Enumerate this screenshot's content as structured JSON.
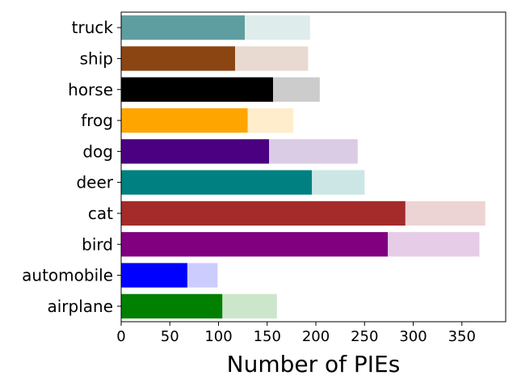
{
  "chart_data": {
    "type": "bar",
    "orientation": "horizontal",
    "stacked": true,
    "xlabel": "Number of PIEs",
    "ylabel": "",
    "title": "",
    "xlim": [
      0,
      395
    ],
    "xticks": [
      0,
      50,
      100,
      150,
      200,
      250,
      300,
      350
    ],
    "grid": false,
    "categories": [
      "airplane",
      "automobile",
      "bird",
      "cat",
      "deer",
      "dog",
      "frog",
      "horse",
      "ship",
      "truck"
    ],
    "series": [
      {
        "values": [
          104,
          68,
          274,
          292,
          196,
          152,
          130,
          156,
          117,
          127
        ],
        "colors": [
          "#008000",
          "#0000ff",
          "#800080",
          "#a52a2a",
          "#008080",
          "#4b0082",
          "#ffa500",
          "#000000",
          "#8b4513",
          "#5f9ea0"
        ]
      },
      {
        "values": [
          56,
          31,
          94,
          82,
          54,
          91,
          47,
          48,
          75,
          67
        ],
        "colors": [
          "#cce6cc",
          "#ccccff",
          "#e6cce6",
          "#edd4d4",
          "#cce6e6",
          "#dbcce6",
          "#ffedcc",
          "#cccccc",
          "#e8dad0",
          "#dfecec"
        ]
      }
    ]
  }
}
